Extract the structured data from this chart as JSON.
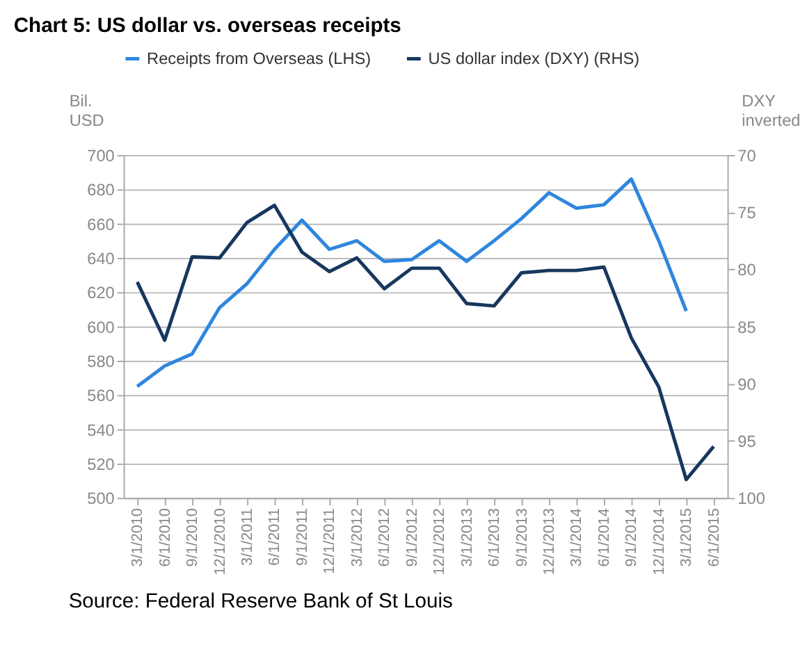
{
  "chart_data": {
    "type": "line",
    "title": "Chart 5: US dollar vs. overseas receipts",
    "ylabel": "Bil. USD",
    "y2label": "DXY inverted",
    "categories": [
      "3/1/2010",
      "6/1/2010",
      "9/1/2010",
      "12/1/2010",
      "3/1/2011",
      "6/1/2011",
      "9/1/2011",
      "12/1/2011",
      "3/1/2012",
      "6/1/2012",
      "9/1/2012",
      "12/1/2012",
      "3/1/2013",
      "6/1/2013",
      "9/1/2013",
      "12/1/2013",
      "3/1/2014",
      "6/1/2014",
      "9/1/2014",
      "12/1/2014",
      "3/1/2015",
      "6/1/2015"
    ],
    "series": [
      {
        "name": "Receipts from Overseas (LHS)",
        "color": "#2e86de",
        "values": [
          565,
          577,
          584,
          611,
          625,
          645,
          662,
          645,
          650,
          638,
          639,
          650,
          638,
          650,
          663,
          678,
          669,
          671,
          686,
          650,
          609,
          null
        ]
      },
      {
        "name": "US dollar index (DXY) (RHS)",
        "color": "#17375e",
        "axis": "y2",
        "values": [
          81.1,
          86.2,
          78.9,
          79.0,
          75.9,
          74.4,
          78.5,
          80.2,
          79.0,
          81.7,
          79.9,
          79.9,
          83.0,
          83.2,
          80.3,
          80.1,
          80.1,
          79.8,
          86.0,
          90.3,
          98.4,
          95.5
        ]
      }
    ],
    "ylim": [
      500,
      700
    ],
    "yticks": [
      500,
      520,
      540,
      560,
      580,
      600,
      620,
      640,
      660,
      680,
      700
    ],
    "y2lim": [
      100,
      70
    ],
    "y2ticks": [
      70,
      75,
      80,
      85,
      90,
      95,
      100
    ],
    "grid": "y",
    "legend": "top",
    "marker": "none",
    "line_style": "solid",
    "annotations": [
      "Source: Federal Reserve Bank of St Louis"
    ]
  }
}
